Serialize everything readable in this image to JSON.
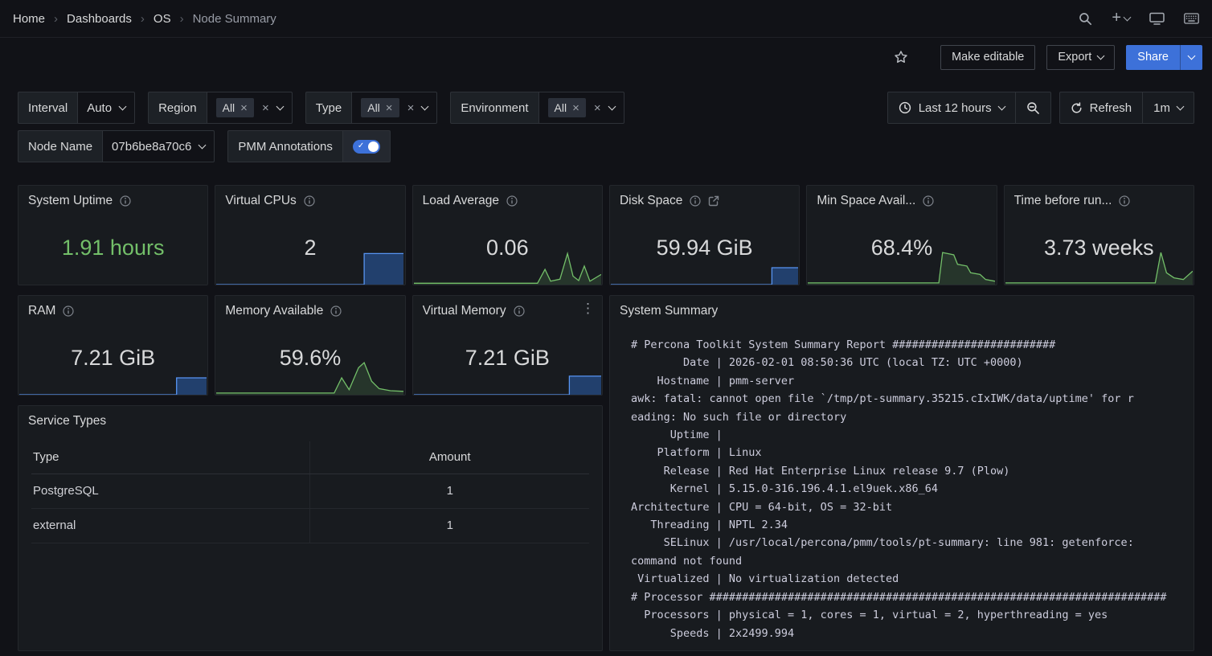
{
  "breadcrumb": {
    "home": "Home",
    "dashboards": "Dashboards",
    "os": "OS",
    "current": "Node Summary"
  },
  "toolbar": {
    "make_editable": "Make editable",
    "export": "Export",
    "share": "Share"
  },
  "glyphs": {
    "kebab": "⋮",
    "close": "×",
    "check": "✓",
    "plus": "+"
  },
  "filters": {
    "interval": {
      "label": "Interval",
      "value": "Auto"
    },
    "region": {
      "label": "Region",
      "chip": "All"
    },
    "type": {
      "label": "Type",
      "chip": "All"
    },
    "environment": {
      "label": "Environment",
      "chip": "All"
    },
    "time_range": {
      "value": "Last 12 hours"
    },
    "refresh": {
      "label": "Refresh",
      "interval": "1m"
    },
    "node_name": {
      "label": "Node Name",
      "value": "07b6be8a70c6"
    },
    "pmm_annotations": {
      "label": "PMM Annotations",
      "enabled": true
    }
  },
  "colors": {
    "page_bg": "#111217",
    "panel_bg": "#181b1f",
    "accent_blue": "#3d71d9",
    "green": "#73bf69"
  },
  "stats": [
    {
      "title": "System Uptime",
      "value": "1.91 hours",
      "value_color": "#73bf69"
    },
    {
      "title": "Virtual CPUs",
      "value": "2",
      "value_color": "#d8d9da",
      "spark": {
        "kind": "area",
        "stroke": "#5794f2",
        "fill": "rgba(50,116,217,0.42)",
        "points": [
          [
            0,
            0
          ],
          [
            0.79,
            0
          ],
          [
            0.79,
            0.92
          ],
          [
            1,
            0.92
          ]
        ]
      }
    },
    {
      "title": "Load Average",
      "value": "0.06",
      "value_color": "#d8d9da",
      "spark": {
        "kind": "area",
        "stroke": "#73bf69",
        "fill": "rgba(115,191,105,0.16)",
        "points": [
          [
            0,
            0.04
          ],
          [
            0.66,
            0.04
          ],
          [
            0.7,
            0.45
          ],
          [
            0.73,
            0.1
          ],
          [
            0.78,
            0.16
          ],
          [
            0.82,
            0.92
          ],
          [
            0.85,
            0.25
          ],
          [
            0.88,
            0.12
          ],
          [
            0.91,
            0.55
          ],
          [
            0.94,
            0.1
          ],
          [
            1,
            0.3
          ]
        ]
      }
    },
    {
      "title": "Disk Space",
      "value": "59.94 GiB",
      "value_color": "#d8d9da",
      "spark": {
        "kind": "area",
        "stroke": "#5794f2",
        "fill": "rgba(50,116,217,0.42)",
        "points": [
          [
            0,
            0
          ],
          [
            0.86,
            0
          ],
          [
            0.86,
            0.5
          ],
          [
            1,
            0.5
          ]
        ]
      }
    },
    {
      "title": "Min Space Avail...",
      "value": "68.4%",
      "value_color": "#d8d9da",
      "spark": {
        "kind": "area",
        "stroke": "#73bf69",
        "fill": "rgba(115,191,105,0.16)",
        "points": [
          [
            0,
            0.05
          ],
          [
            0.7,
            0.05
          ],
          [
            0.72,
            0.95
          ],
          [
            0.78,
            0.88
          ],
          [
            0.8,
            0.6
          ],
          [
            0.85,
            0.55
          ],
          [
            0.87,
            0.35
          ],
          [
            0.92,
            0.3
          ],
          [
            0.95,
            0.15
          ],
          [
            1,
            0.1
          ]
        ]
      }
    },
    {
      "title": "Time before run...",
      "value": "3.73 weeks",
      "value_color": "#d8d9da",
      "spark": {
        "kind": "area",
        "stroke": "#73bf69",
        "fill": "rgba(115,191,105,0.16)",
        "points": [
          [
            0,
            0.05
          ],
          [
            0.8,
            0.05
          ],
          [
            0.83,
            0.95
          ],
          [
            0.86,
            0.35
          ],
          [
            0.9,
            0.2
          ],
          [
            0.95,
            0.15
          ],
          [
            1,
            0.4
          ]
        ]
      }
    },
    {
      "title": "RAM",
      "value": "7.21 GiB",
      "value_color": "#d8d9da",
      "spark": {
        "kind": "area",
        "stroke": "#5794f2",
        "fill": "rgba(50,116,217,0.42)",
        "points": [
          [
            0,
            0
          ],
          [
            0.84,
            0
          ],
          [
            0.84,
            0.5
          ],
          [
            1,
            0.5
          ]
        ]
      }
    },
    {
      "title": "Memory Available",
      "value": "59.6%",
      "value_color": "#d8d9da",
      "spark": {
        "kind": "area",
        "stroke": "#73bf69",
        "fill": "rgba(115,191,105,0.16)",
        "points": [
          [
            0,
            0.05
          ],
          [
            0.63,
            0.05
          ],
          [
            0.67,
            0.5
          ],
          [
            0.71,
            0.15
          ],
          [
            0.76,
            0.8
          ],
          [
            0.79,
            0.95
          ],
          [
            0.83,
            0.4
          ],
          [
            0.87,
            0.18
          ],
          [
            0.93,
            0.12
          ],
          [
            1,
            0.1
          ]
        ]
      }
    },
    {
      "title": "Virtual Memory",
      "value": "7.21 GiB",
      "value_color": "#d8d9da",
      "spark": {
        "kind": "area",
        "stroke": "#5794f2",
        "fill": "rgba(50,116,217,0.42)",
        "points": [
          [
            0,
            0
          ],
          [
            0.83,
            0
          ],
          [
            0.83,
            0.55
          ],
          [
            1,
            0.55
          ]
        ]
      }
    }
  ],
  "service_types": {
    "title": "Service Types",
    "columns": {
      "type": "Type",
      "amount": "Amount"
    },
    "rows": [
      {
        "type": "PostgreSQL",
        "amount": "1"
      },
      {
        "type": "external",
        "amount": "1"
      }
    ]
  },
  "system_summary": {
    "title": "System Summary",
    "text": "# Percona Toolkit System Summary Report #########################\n        Date | 2026-02-01 08:50:36 UTC (local TZ: UTC +0000)\n    Hostname | pmm-server\nawk: fatal: cannot open file `/tmp/pt-summary.35215.cIxIWK/data/uptime' for r\neading: No such file or directory\n      Uptime | \n    Platform | Linux\n     Release | Red Hat Enterprise Linux release 9.7 (Plow)\n      Kernel | 5.15.0-316.196.4.1.el9uek.x86_64\nArchitecture | CPU = 64-bit, OS = 32-bit\n   Threading | NPTL 2.34\n     SELinux | /usr/local/percona/pmm/tools/pt-summary: line 981: getenforce:\ncommand not found\n Virtualized | No virtualization detected\n# Processor ######################################################################\n  Processors | physical = 1, cores = 1, virtual = 2, hyperthreading = yes\n      Speeds | 2x2499.994"
  }
}
